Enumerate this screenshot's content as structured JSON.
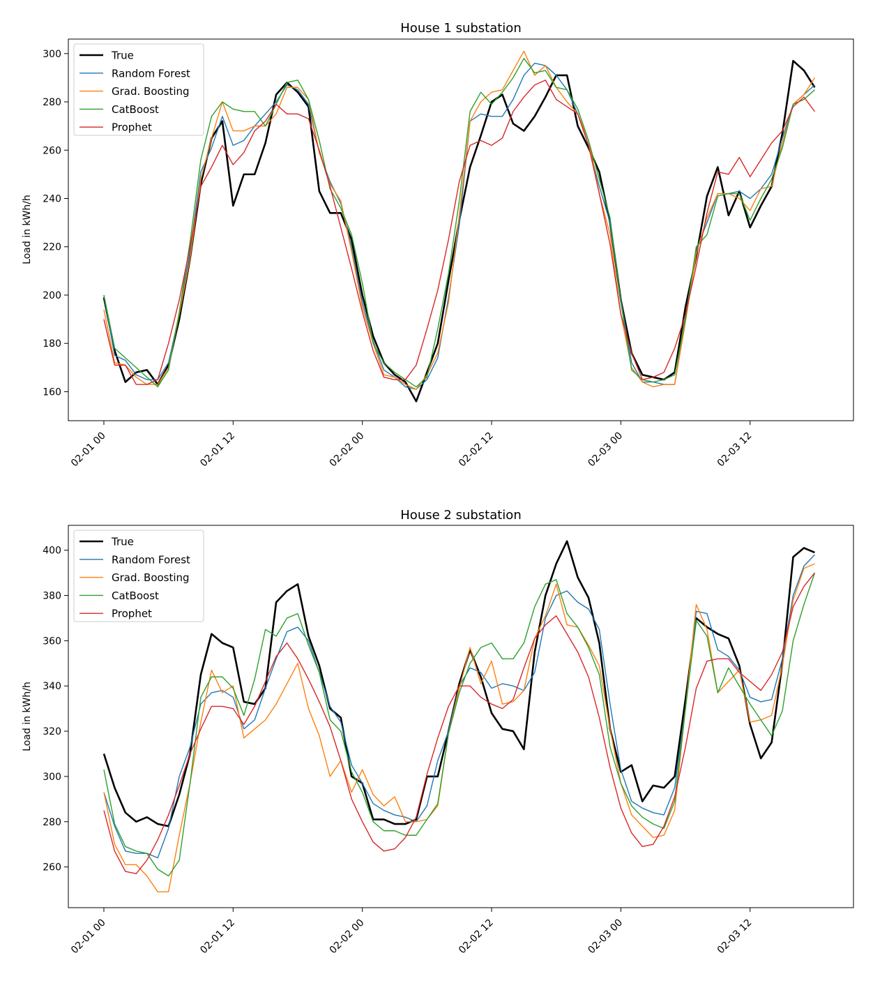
{
  "colors": {
    "True": "#000000",
    "Random Forest": "#1f77b4",
    "Grad. Boosting": "#ff7f0e",
    "CatBoost": "#2ca02c",
    "Prophet": "#d62728"
  },
  "chart_data": [
    {
      "type": "line",
      "title": "House 1 substation",
      "xlabel": "",
      "ylabel": "Load in kWh/h",
      "x_ticks": [
        "02-01 00",
        "02-01 12",
        "02-02 00",
        "02-02 12",
        "02-03 00",
        "02-03 12"
      ],
      "x_tick_hours": [
        0,
        12,
        24,
        36,
        48,
        60
      ],
      "xlim": [
        -3.3,
        69.6
      ],
      "y_ticks": [
        160,
        180,
        200,
        220,
        240,
        260,
        280,
        300
      ],
      "ylim": [
        148,
        306
      ],
      "grid": false,
      "legend": "upper-left",
      "series": [
        {
          "name": "True",
          "values": [
            199,
            177,
            164,
            168,
            169,
            163,
            171,
            190,
            215,
            246,
            265,
            272,
            237,
            250,
            250,
            263,
            283,
            288,
            284,
            278,
            243,
            234,
            234,
            223,
            200,
            183,
            172,
            167,
            164,
            156,
            168,
            180,
            206,
            231,
            253,
            266,
            280,
            283,
            271,
            268,
            274,
            282,
            291,
            291,
            270,
            261,
            251,
            230,
            198,
            176,
            167,
            166,
            165,
            168,
            195,
            216,
            241,
            253,
            233,
            243,
            228,
            237,
            245,
            267,
            297,
            293,
            286
          ]
        },
        {
          "name": "Random Forest",
          "values": [
            200,
            175,
            173,
            167,
            165,
            165,
            172,
            192,
            218,
            251,
            261,
            274,
            262,
            264,
            270,
            275,
            280,
            287,
            285,
            279,
            259,
            247,
            238,
            220,
            197,
            181,
            169,
            166,
            162,
            161,
            165,
            174,
            199,
            229,
            272,
            275,
            274,
            274,
            281,
            291,
            296,
            295,
            291,
            285,
            275,
            262,
            245,
            230,
            198,
            172,
            164,
            164,
            163,
            163,
            191,
            219,
            230,
            242,
            242,
            243,
            240,
            244,
            250,
            265,
            279,
            283,
            287
          ]
        },
        {
          "name": "Grad. Boosting",
          "values": [
            194,
            172,
            171,
            166,
            163,
            163,
            170,
            192,
            215,
            248,
            265,
            280,
            268,
            268,
            270,
            270,
            275,
            286,
            286,
            281,
            259,
            246,
            239,
            218,
            195,
            180,
            167,
            166,
            163,
            161,
            167,
            176,
            197,
            233,
            272,
            280,
            284,
            285,
            293,
            301,
            291,
            295,
            286,
            280,
            275,
            264,
            242,
            225,
            192,
            170,
            164,
            162,
            163,
            163,
            189,
            217,
            232,
            242,
            242,
            240,
            235,
            244,
            245,
            263,
            279,
            283,
            290
          ]
        },
        {
          "name": "CatBoost",
          "values": [
            200,
            178,
            174,
            170,
            166,
            162,
            169,
            193,
            222,
            256,
            274,
            280,
            277,
            276,
            276,
            270,
            279,
            288,
            289,
            281,
            264,
            244,
            236,
            225,
            205,
            180,
            172,
            168,
            165,
            162,
            166,
            186,
            209,
            239,
            276,
            284,
            279,
            284,
            290,
            298,
            292,
            293,
            286,
            285,
            277,
            264,
            248,
            232,
            197,
            169,
            165,
            164,
            165,
            167,
            190,
            220,
            225,
            241,
            242,
            242,
            231,
            240,
            248,
            261,
            279,
            281,
            285
          ]
        },
        {
          "name": "Prophet",
          "values": [
            190,
            171,
            171,
            163,
            163,
            165,
            180,
            198,
            220,
            245,
            253,
            262,
            254,
            259,
            268,
            272,
            279,
            275,
            275,
            273,
            260,
            245,
            228,
            211,
            193,
            177,
            166,
            165,
            165,
            171,
            186,
            202,
            223,
            247,
            262,
            264,
            262,
            265,
            276,
            282,
            287,
            289,
            281,
            278,
            275,
            262,
            242,
            221,
            192,
            176,
            165,
            166,
            168,
            178,
            192,
            212,
            234,
            251,
            250,
            257,
            249,
            256,
            263,
            268,
            278,
            282,
            276
          ]
        }
      ]
    },
    {
      "type": "line",
      "title": "House 2 substation",
      "xlabel": "",
      "ylabel": "Load in kWh/h",
      "x_ticks": [
        "02-01 00",
        "02-01 12",
        "02-02 00",
        "02-02 12",
        "02-03 00",
        "02-03 12"
      ],
      "x_tick_hours": [
        0,
        12,
        24,
        36,
        48,
        60
      ],
      "xlim": [
        -3.3,
        69.6
      ],
      "y_ticks": [
        260,
        280,
        300,
        320,
        340,
        360,
        380,
        400
      ],
      "ylim": [
        242,
        411
      ],
      "grid": false,
      "legend": "upper-left",
      "series": [
        {
          "name": "True",
          "values": [
            310,
            295,
            284,
            280,
            282,
            279,
            278,
            292,
            310,
            345,
            363,
            359,
            357,
            333,
            332,
            339,
            377,
            382,
            385,
            362,
            349,
            330,
            326,
            300,
            297,
            281,
            281,
            279,
            279,
            281,
            300,
            300,
            320,
            341,
            356,
            344,
            328,
            321,
            320,
            312,
            355,
            380,
            394,
            404,
            388,
            379,
            359,
            321,
            302,
            305,
            289,
            296,
            295,
            300,
            334,
            370,
            366,
            363,
            361,
            349,
            323,
            308,
            315,
            350,
            397,
            401,
            399
          ]
        },
        {
          "name": "Random Forest",
          "values": [
            293,
            278,
            267,
            266,
            266,
            264,
            277,
            300,
            313,
            332,
            337,
            338,
            335,
            321,
            325,
            339,
            352,
            364,
            366,
            360,
            346,
            331,
            324,
            305,
            297,
            288,
            285,
            283,
            282,
            280,
            287,
            307,
            320,
            340,
            348,
            346,
            339,
            341,
            340,
            338,
            346,
            370,
            380,
            382,
            377,
            374,
            365,
            332,
            303,
            289,
            286,
            284,
            283,
            295,
            330,
            373,
            372,
            356,
            353,
            347,
            335,
            333,
            334,
            352,
            380,
            393,
            398
          ]
        },
        {
          "name": "Grad. Boosting",
          "values": [
            293,
            270,
            261,
            261,
            256,
            249,
            249,
            274,
            297,
            324,
            347,
            337,
            340,
            317,
            321,
            325,
            332,
            341,
            350,
            330,
            318,
            300,
            307,
            293,
            303,
            292,
            287,
            291,
            280,
            280,
            281,
            287,
            319,
            339,
            357,
            341,
            351,
            332,
            333,
            338,
            361,
            371,
            385,
            367,
            366,
            358,
            349,
            321,
            297,
            283,
            278,
            273,
            274,
            285,
            330,
            376,
            365,
            337,
            342,
            347,
            324,
            325,
            327,
            349,
            378,
            392,
            394
          ]
        },
        {
          "name": "CatBoost",
          "values": [
            303,
            279,
            269,
            267,
            266,
            259,
            256,
            263,
            297,
            335,
            344,
            344,
            339,
            327,
            343,
            365,
            362,
            370,
            372,
            358,
            346,
            325,
            320,
            302,
            293,
            280,
            276,
            276,
            274,
            274,
            281,
            288,
            319,
            337,
            350,
            357,
            359,
            352,
            352,
            359,
            375,
            385,
            387,
            372,
            366,
            357,
            345,
            313,
            297,
            287,
            282,
            279,
            277,
            289,
            330,
            369,
            362,
            337,
            348,
            340,
            332,
            325,
            318,
            329,
            360,
            376,
            390
          ]
        },
        {
          "name": "Prophet",
          "values": [
            285,
            267,
            258,
            257,
            263,
            272,
            283,
            296,
            310,
            321,
            331,
            331,
            330,
            323,
            331,
            342,
            353,
            359,
            352,
            343,
            333,
            322,
            307,
            290,
            280,
            271,
            267,
            268,
            273,
            282,
            301,
            317,
            331,
            340,
            340,
            335,
            332,
            330,
            334,
            348,
            361,
            367,
            371,
            363,
            355,
            344,
            326,
            304,
            286,
            275,
            269,
            270,
            278,
            291,
            313,
            339,
            351,
            352,
            352,
            346,
            342,
            338,
            345,
            355,
            375,
            384,
            390
          ]
        }
      ]
    }
  ]
}
